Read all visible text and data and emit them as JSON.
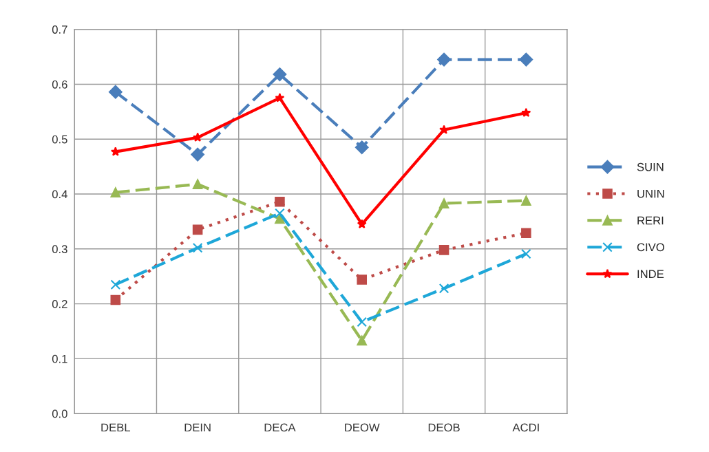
{
  "chart_data": {
    "type": "line",
    "categories": [
      "DEBL",
      "DEIN",
      "DECA",
      "DEOW",
      "DEOB",
      "ACDI"
    ],
    "series": [
      {
        "name": "SUIN",
        "color": "#4a7ebb",
        "marker": "diamond",
        "line_style": "dashed",
        "values": [
          0.586,
          0.472,
          0.618,
          0.485,
          0.645,
          0.645
        ]
      },
      {
        "name": "UNIN",
        "color": "#be4b48",
        "marker": "square",
        "line_style": "dotted",
        "values": [
          0.207,
          0.335,
          0.386,
          0.244,
          0.298,
          0.329
        ]
      },
      {
        "name": "RERI",
        "color": "#98b954",
        "marker": "triangle",
        "line_style": "dashed",
        "values": [
          0.403,
          0.418,
          0.355,
          0.133,
          0.383,
          0.388
        ]
      },
      {
        "name": "CIVO",
        "color": "#1ea7d8",
        "marker": "cross",
        "line_style": "dashed",
        "values": [
          0.235,
          0.302,
          0.365,
          0.167,
          0.228,
          0.291
        ]
      },
      {
        "name": "INDE",
        "color": "#ff0000",
        "marker": "star",
        "line_style": "solid",
        "values": [
          0.477,
          0.503,
          0.575,
          0.345,
          0.517,
          0.548
        ]
      }
    ],
    "ylim": [
      0,
      0.7
    ],
    "yticks": [
      {
        "value": 0,
        "label": "0.0"
      },
      {
        "value": 0.1,
        "label": "0.1"
      },
      {
        "value": 0.2,
        "label": "0.2"
      },
      {
        "value": 0.3,
        "label": "0.3"
      },
      {
        "value": 0.4,
        "label": "0.4"
      },
      {
        "value": 0.5,
        "label": "0.5"
      },
      {
        "value": 0.6,
        "label": "0.6"
      },
      {
        "value": 0.7,
        "label": "0.7"
      }
    ],
    "grid": true,
    "legend": "right"
  }
}
